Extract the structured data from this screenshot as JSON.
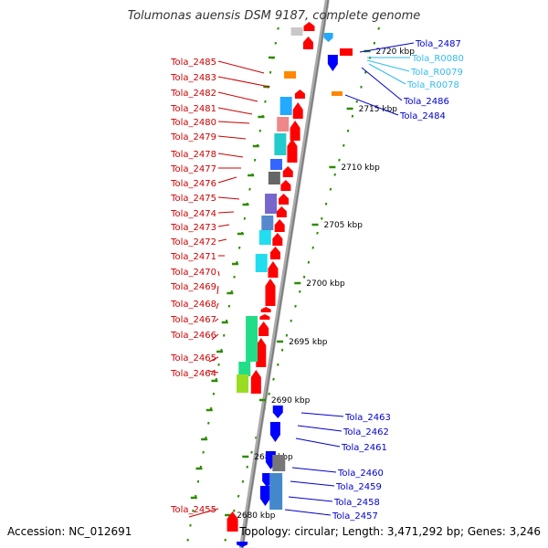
{
  "title": "Tolumonas auensis DSM 9187, complete genome",
  "footer": {
    "accession": "Accession: NC_012691",
    "summary": "Topology: circular; Length: 3,471,292 bp; Genes: 3,246"
  },
  "colors": {
    "backbone": "#999999",
    "tick": "#2e8b00",
    "left_label": "#cc0000",
    "right_label": "#0000cc",
    "rna_label": "#33bbee",
    "red": "#ff0000",
    "blue": "#0000ff"
  },
  "axis_labels": [
    "2720 kbp",
    "2715 kbp",
    "2710 kbp",
    "2705 kbp",
    "2700 kbp",
    "2695 kbp",
    "2690 kbp",
    "2685 kbp",
    "2680 kbp"
  ],
  "left_genes": [
    "Tola_2485",
    "Tola_2483",
    "Tola_2482",
    "Tola_2481",
    "Tola_2480",
    "Tola_2479",
    "Tola_2478",
    "Tola_2477",
    "Tola_2476",
    "Tola_2475",
    "Tola_2474",
    "Tola_2473",
    "Tola_2472",
    "Tola_2471",
    "Tola_2470",
    "Tola_2469",
    "Tola_2468",
    "Tola_2467",
    "Tola_2466",
    "Tola_2465",
    "Tola_2464",
    "Tola_2455"
  ],
  "right_genes": [
    "Tola_2487",
    "Tola_R0080",
    "Tola_R0079",
    "Tola_R0078",
    "Tola_2486",
    "Tola_2484",
    "Tola_2463",
    "Tola_2462",
    "Tola_2461",
    "Tola_2460",
    "Tola_2459",
    "Tola_2458",
    "Tola_2457"
  ]
}
